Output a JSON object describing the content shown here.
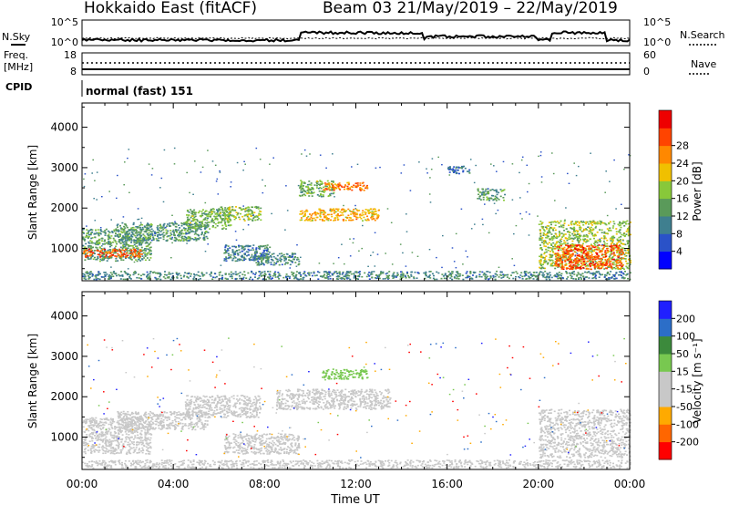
{
  "header": {
    "station": "Hokkaido East (fitACF)",
    "beam_date": "Beam 03  21/May/2019 – 22/May/2019"
  },
  "params": {
    "nsky_label": "N.Sky",
    "nsky_top": "10^5",
    "nsky_bot": "10^0",
    "freq_label": "Freq.",
    "freq_unit": "[MHz]",
    "freq_top": "18",
    "freq_bot": "8",
    "nsearch_label": "N.Search",
    "nsearch_top": "10^5",
    "nsearch_bot": "10^0",
    "nave_label": "Nave",
    "nave_top": "60",
    "nave_bot": "0",
    "cpid_label": "CPID",
    "cpid_value": "normal (fast) 151"
  },
  "colors": {
    "power": [
      "#0000ff",
      "#2a52c8",
      "#3f7f8f",
      "#5a9a5a",
      "#88c83a",
      "#f0c000",
      "#ff8800",
      "#ff4400",
      "#ee0000"
    ],
    "velocity": [
      "#ff0000",
      "#ff6600",
      "#ffaa00",
      "#c8c8c8",
      "#c8c8c8",
      "#78c850",
      "#3c8a3c",
      "#2c6ec8",
      "#2020ff"
    ]
  },
  "chart_data": [
    {
      "type": "heatmap",
      "panel": "power",
      "ylabel": "Slant Range [km]",
      "ylim": [
        200,
        4600
      ],
      "yticks": [
        1000,
        2000,
        3000,
        4000
      ],
      "xlim": [
        0,
        24
      ],
      "colorbar_label": "Power [dB]",
      "colorbar_ticks": [
        "4",
        "8",
        "12",
        "16",
        "20",
        "24",
        "28"
      ],
      "colorbar_range": [
        0,
        32
      ],
      "regions": [
        {
          "t0": 0.0,
          "t1": 3.0,
          "r0": 700,
          "r1": 1500,
          "value": 12
        },
        {
          "t0": 0.0,
          "t1": 2.6,
          "r0": 800,
          "r1": 1000,
          "value": 26
        },
        {
          "t0": 1.5,
          "t1": 5.5,
          "r0": 1200,
          "r1": 1650,
          "value": 11
        },
        {
          "t0": 4.5,
          "t1": 6.5,
          "r0": 1500,
          "r1": 2000,
          "value": 14
        },
        {
          "t0": 6.0,
          "t1": 7.8,
          "r0": 1700,
          "r1": 2050,
          "value": 15
        },
        {
          "t0": 6.2,
          "t1": 8.2,
          "r0": 700,
          "r1": 1100,
          "value": 9
        },
        {
          "t0": 7.5,
          "t1": 9.5,
          "r0": 600,
          "r1": 900,
          "value": 10
        },
        {
          "t0": 9.5,
          "t1": 11.0,
          "r0": 2300,
          "r1": 2700,
          "value": 14
        },
        {
          "t0": 9.5,
          "t1": 13.0,
          "r0": 1700,
          "r1": 2000,
          "value": 21
        },
        {
          "t0": 10.5,
          "t1": 12.5,
          "r0": 2450,
          "r1": 2650,
          "value": 24
        },
        {
          "t0": 16.0,
          "t1": 17.0,
          "r0": 2850,
          "r1": 3050,
          "value": 8
        },
        {
          "t0": 17.3,
          "t1": 18.5,
          "r0": 2200,
          "r1": 2500,
          "value": 12
        },
        {
          "t0": 20.0,
          "t1": 24.0,
          "r0": 500,
          "r1": 1700,
          "value": 16
        },
        {
          "t0": 20.7,
          "t1": 23.7,
          "r0": 500,
          "r1": 1100,
          "value": 26
        },
        {
          "t0": 0.0,
          "t1": 24.0,
          "r0": 250,
          "r1": 450,
          "value": 10
        }
      ]
    },
    {
      "type": "heatmap",
      "panel": "velocity",
      "ylabel": "Slant Range [km]",
      "ylim": [
        200,
        4600
      ],
      "yticks": [
        1000,
        2000,
        3000,
        4000
      ],
      "xlim": [
        0,
        24
      ],
      "xlabel": "Time UT",
      "xticks": [
        "00:00",
        "04:00",
        "08:00",
        "12:00",
        "16:00",
        "20:00",
        "00:00"
      ],
      "colorbar_label": "Velocity [m s⁻¹]",
      "colorbar_ticks": [
        "-200",
        "-100",
        "-50",
        "-15",
        "15",
        "50",
        "100",
        "200"
      ],
      "regions": [
        {
          "t0": 0.0,
          "t1": 3.0,
          "r0": 600,
          "r1": 1500,
          "value": 0
        },
        {
          "t0": 1.5,
          "t1": 5.5,
          "r0": 1200,
          "r1": 1650,
          "value": 0
        },
        {
          "t0": 4.5,
          "t1": 7.8,
          "r0": 1500,
          "r1": 2050,
          "value": 0
        },
        {
          "t0": 6.2,
          "t1": 9.5,
          "r0": 600,
          "r1": 1100,
          "value": 0
        },
        {
          "t0": 8.5,
          "t1": 13.5,
          "r0": 1700,
          "r1": 2200,
          "value": 0
        },
        {
          "t0": 10.5,
          "t1": 12.5,
          "r0": 2450,
          "r1": 2700,
          "value": 30
        },
        {
          "t0": 20.0,
          "t1": 24.0,
          "r0": 500,
          "r1": 1700,
          "value": 0
        },
        {
          "t0": 0.0,
          "t1": 24.0,
          "r0": 250,
          "r1": 450,
          "value": 0
        }
      ]
    }
  ]
}
